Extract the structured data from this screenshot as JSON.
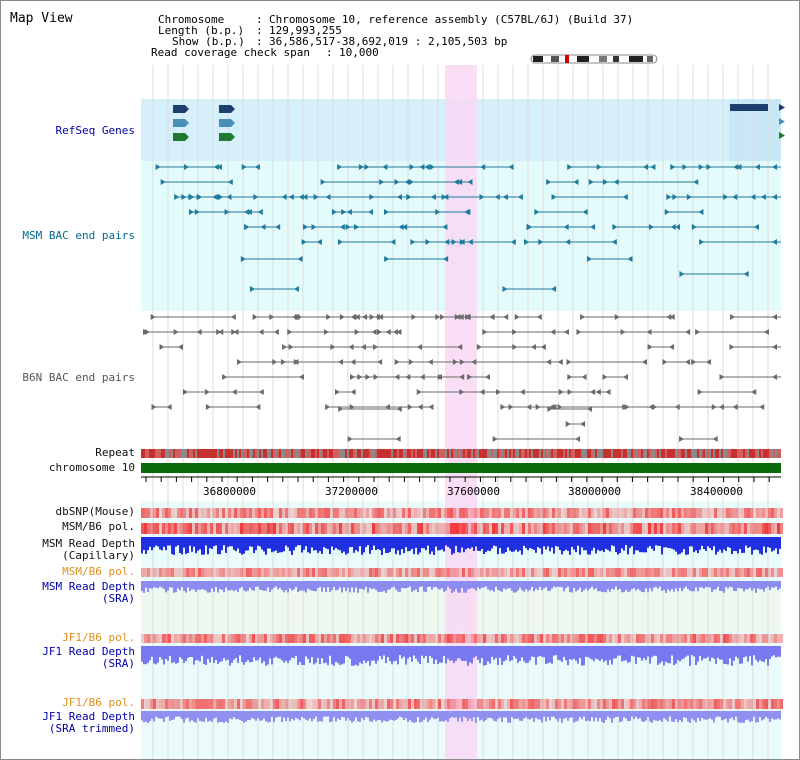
{
  "view": {
    "title": "Map View",
    "info": {
      "chromosome_label": "Chromosome",
      "chromosome_value": "Chromosome 10, reference assembly (C57BL/6J) (Build 37)",
      "length_label": "Length (b.p.)",
      "length_value": "129,993,255",
      "show_label": "Show (b.p.)",
      "show_value": "36,586,517-38,692,019 : 2,105,503 bp",
      "coverage_label": "Read coverage check span",
      "coverage_value": "10,000"
    }
  },
  "tracks": {
    "refseq": "RefSeq Genes",
    "msm_bac": "MSM BAC end pairs",
    "b6n_bac": "B6N BAC end pairs",
    "repeat": "Repeat",
    "chromosome": "chromosome 10",
    "dbsnp": "dbSNP(Mouse)",
    "msm_pol": "MSM/B6 pol.",
    "msm_depth_cap_1": "MSM Read Depth",
    "msm_depth_cap_2": "(Capillary)",
    "msm_pol_2": "MSM/B6 pol.",
    "msm_depth_sra_1": "MSM Read Depth",
    "msm_depth_sra_2": "(SRA)",
    "jf1_pol": "JF1/B6 pol.",
    "jf1_depth_sra_1": "JF1 Read Depth",
    "jf1_depth_sra_2": "(SRA)",
    "jf1_pol_2": "JF1/B6 pol.",
    "jf1_depth_trim_1": "JF1 Read Depth",
    "jf1_depth_trim_2": "(SRA trimmed)"
  },
  "axis": {
    "ticks": [
      "36800000",
      "37200000",
      "37600000",
      "38000000",
      "38400000"
    ]
  },
  "colors": {
    "refseq_bg": "#d6f0fb",
    "msm_bg": "#e4fbfb",
    "highlight": "#f8d8f4",
    "chromosome": "#0a6b0a",
    "teal": "#1f7a9c",
    "gray": "#6a6a6a"
  }
}
